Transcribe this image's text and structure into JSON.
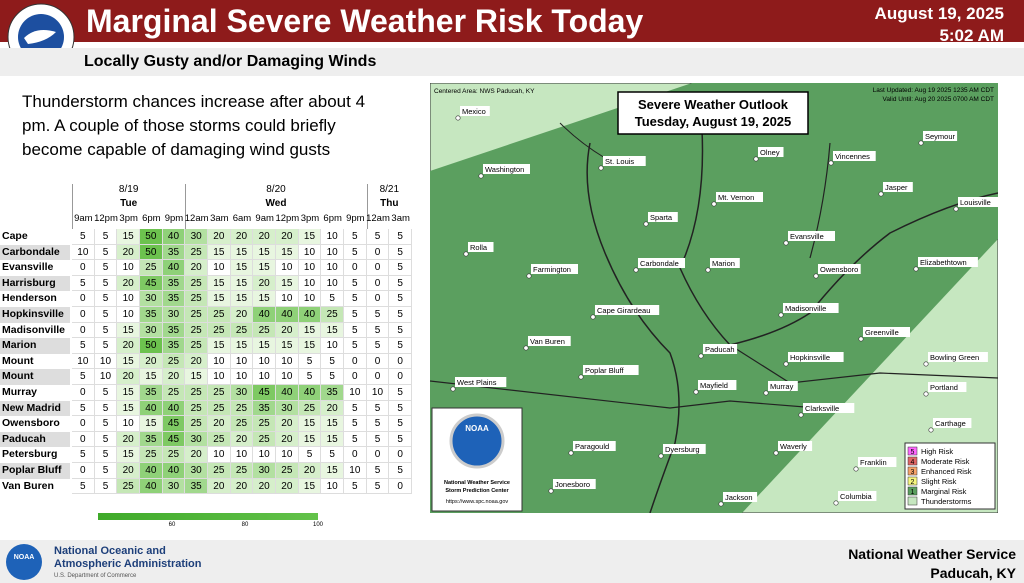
{
  "header": {
    "title": "Marginal Severe Weather Risk Today",
    "date": "August 19, 2025",
    "time": "5:02 AM",
    "subtitle": "Locally Gusty and/or Damaging Winds"
  },
  "description": "Thunderstorm chances increase after about 4 pm. A couple of those storms could briefly become capable of damaging wind gusts",
  "table": {
    "days": [
      {
        "date": "8/19",
        "day": "Tue"
      },
      {
        "date": "8/20",
        "day": "Wed"
      },
      {
        "date": "8/21",
        "day": "Thu"
      }
    ],
    "hours": [
      "9am",
      "12pm",
      "3pm",
      "6pm",
      "9pm",
      "12am",
      "3am",
      "6am",
      "9am",
      "12pm",
      "3pm",
      "6pm",
      "9pm",
      "12am",
      "3am"
    ],
    "rows": [
      {
        "location": "Cape Girardeau",
        "values": [
          5,
          5,
          15,
          50,
          40,
          30,
          20,
          20,
          20,
          20,
          15,
          10,
          5,
          5,
          5
        ]
      },
      {
        "location": "Carbondale",
        "values": [
          10,
          5,
          20,
          50,
          35,
          25,
          15,
          15,
          15,
          15,
          10,
          10,
          5,
          0,
          5
        ]
      },
      {
        "location": "Evansville",
        "values": [
          0,
          5,
          10,
          25,
          40,
          20,
          10,
          15,
          15,
          10,
          10,
          10,
          0,
          0,
          5
        ]
      },
      {
        "location": "Harrisburg",
        "values": [
          5,
          5,
          20,
          45,
          35,
          25,
          15,
          15,
          20,
          15,
          10,
          10,
          5,
          0,
          5
        ]
      },
      {
        "location": "Henderson",
        "values": [
          0,
          5,
          10,
          30,
          35,
          25,
          15,
          15,
          15,
          10,
          10,
          5,
          5,
          0,
          5
        ]
      },
      {
        "location": "Hopkinsville",
        "values": [
          0,
          5,
          10,
          35,
          30,
          25,
          25,
          20,
          40,
          40,
          40,
          25,
          5,
          5,
          5
        ]
      },
      {
        "location": "Madisonville",
        "values": [
          0,
          5,
          15,
          30,
          35,
          25,
          25,
          25,
          25,
          20,
          15,
          15,
          5,
          5,
          5
        ]
      },
      {
        "location": "Marion",
        "values": [
          5,
          5,
          20,
          50,
          35,
          25,
          15,
          15,
          15,
          15,
          15,
          10,
          5,
          5,
          5
        ]
      },
      {
        "location": "Mount Carmel",
        "values": [
          10,
          10,
          15,
          20,
          25,
          20,
          10,
          10,
          10,
          10,
          5,
          5,
          0,
          0,
          0
        ]
      },
      {
        "location": "Mount Vernon",
        "values": [
          5,
          10,
          20,
          15,
          20,
          15,
          10,
          10,
          10,
          10,
          5,
          5,
          0,
          0,
          0
        ]
      },
      {
        "location": "Murray",
        "values": [
          0,
          5,
          15,
          35,
          25,
          25,
          25,
          30,
          45,
          40,
          40,
          35,
          10,
          10,
          5
        ]
      },
      {
        "location": "New Madrid",
        "values": [
          5,
          5,
          15,
          40,
          40,
          25,
          25,
          25,
          35,
          30,
          25,
          20,
          5,
          5,
          5
        ]
      },
      {
        "location": "Owensboro",
        "values": [
          0,
          5,
          10,
          15,
          45,
          25,
          20,
          25,
          25,
          20,
          15,
          15,
          5,
          5,
          5
        ]
      },
      {
        "location": "Paducah",
        "values": [
          0,
          5,
          20,
          35,
          45,
          30,
          25,
          20,
          25,
          20,
          15,
          15,
          5,
          5,
          5
        ]
      },
      {
        "location": "Petersburg",
        "values": [
          5,
          5,
          15,
          25,
          25,
          20,
          10,
          10,
          10,
          10,
          5,
          5,
          0,
          0,
          0
        ]
      },
      {
        "location": "Poplar Bluff",
        "values": [
          0,
          5,
          20,
          40,
          40,
          30,
          25,
          25,
          30,
          25,
          20,
          15,
          10,
          5,
          5
        ]
      },
      {
        "location": "Van Buren",
        "values": [
          5,
          5,
          25,
          40,
          30,
          35,
          20,
          20,
          20,
          20,
          15,
          10,
          5,
          5,
          0
        ]
      }
    ]
  },
  "colorbar": {
    "labels": [
      "60",
      "80",
      "100"
    ]
  },
  "map": {
    "title": "Severe Weather Outlook",
    "subtitle": "Tuesday, August 19, 2025",
    "centered": "Centered Area: NWS Paducah, KY",
    "updated": "Last Updated: Aug 19 2025 1235 AM CDT",
    "valid": "Valid Until: Aug 20 2025 0700 AM CDT",
    "cities": [
      "Mexico",
      "Washington",
      "St. Louis",
      "Olney",
      "Vincennes",
      "Seymour",
      "Jasper",
      "Louisville",
      "Mt. Vernon",
      "Sparta",
      "Rolla",
      "Farmington",
      "Carbondale",
      "Marion",
      "Evansville",
      "Owensboro",
      "Elizabethtown",
      "Cape Girardeau",
      "Madisonville",
      "Greenville",
      "Van Buren",
      "Paducah",
      "Hopkinsville",
      "Bowling Green",
      "Poplar Bluff",
      "West Plains",
      "Mayfield",
      "Murray",
      "Portland",
      "Clarksville",
      "Carthage",
      "Paragould",
      "Dyersburg",
      "Waverly",
      "Franklin",
      "Jonesboro",
      "Jackson",
      "Columbia"
    ],
    "legend": [
      {
        "level": "5",
        "label": "High Risk"
      },
      {
        "level": "4",
        "label": "Moderate Risk"
      },
      {
        "level": "3",
        "label": "Enhanced Risk"
      },
      {
        "level": "2",
        "label": "Slight Risk"
      },
      {
        "level": "1",
        "label": "Marginal Risk"
      },
      {
        "label": "Thunderstorms"
      }
    ],
    "logo": {
      "abbr": "NOAA",
      "line1": "National Weather Service",
      "line2": "Storm Prediction Center",
      "url": "https://www.spc.noaa.gov"
    }
  },
  "footer": {
    "logo": "NOAA",
    "agency1": "National Oceanic and",
    "agency2": "Atmospheric Administration",
    "dept": "U.S. Department of Commerce",
    "office": "National Weather Service",
    "location": "Paducah, KY"
  }
}
